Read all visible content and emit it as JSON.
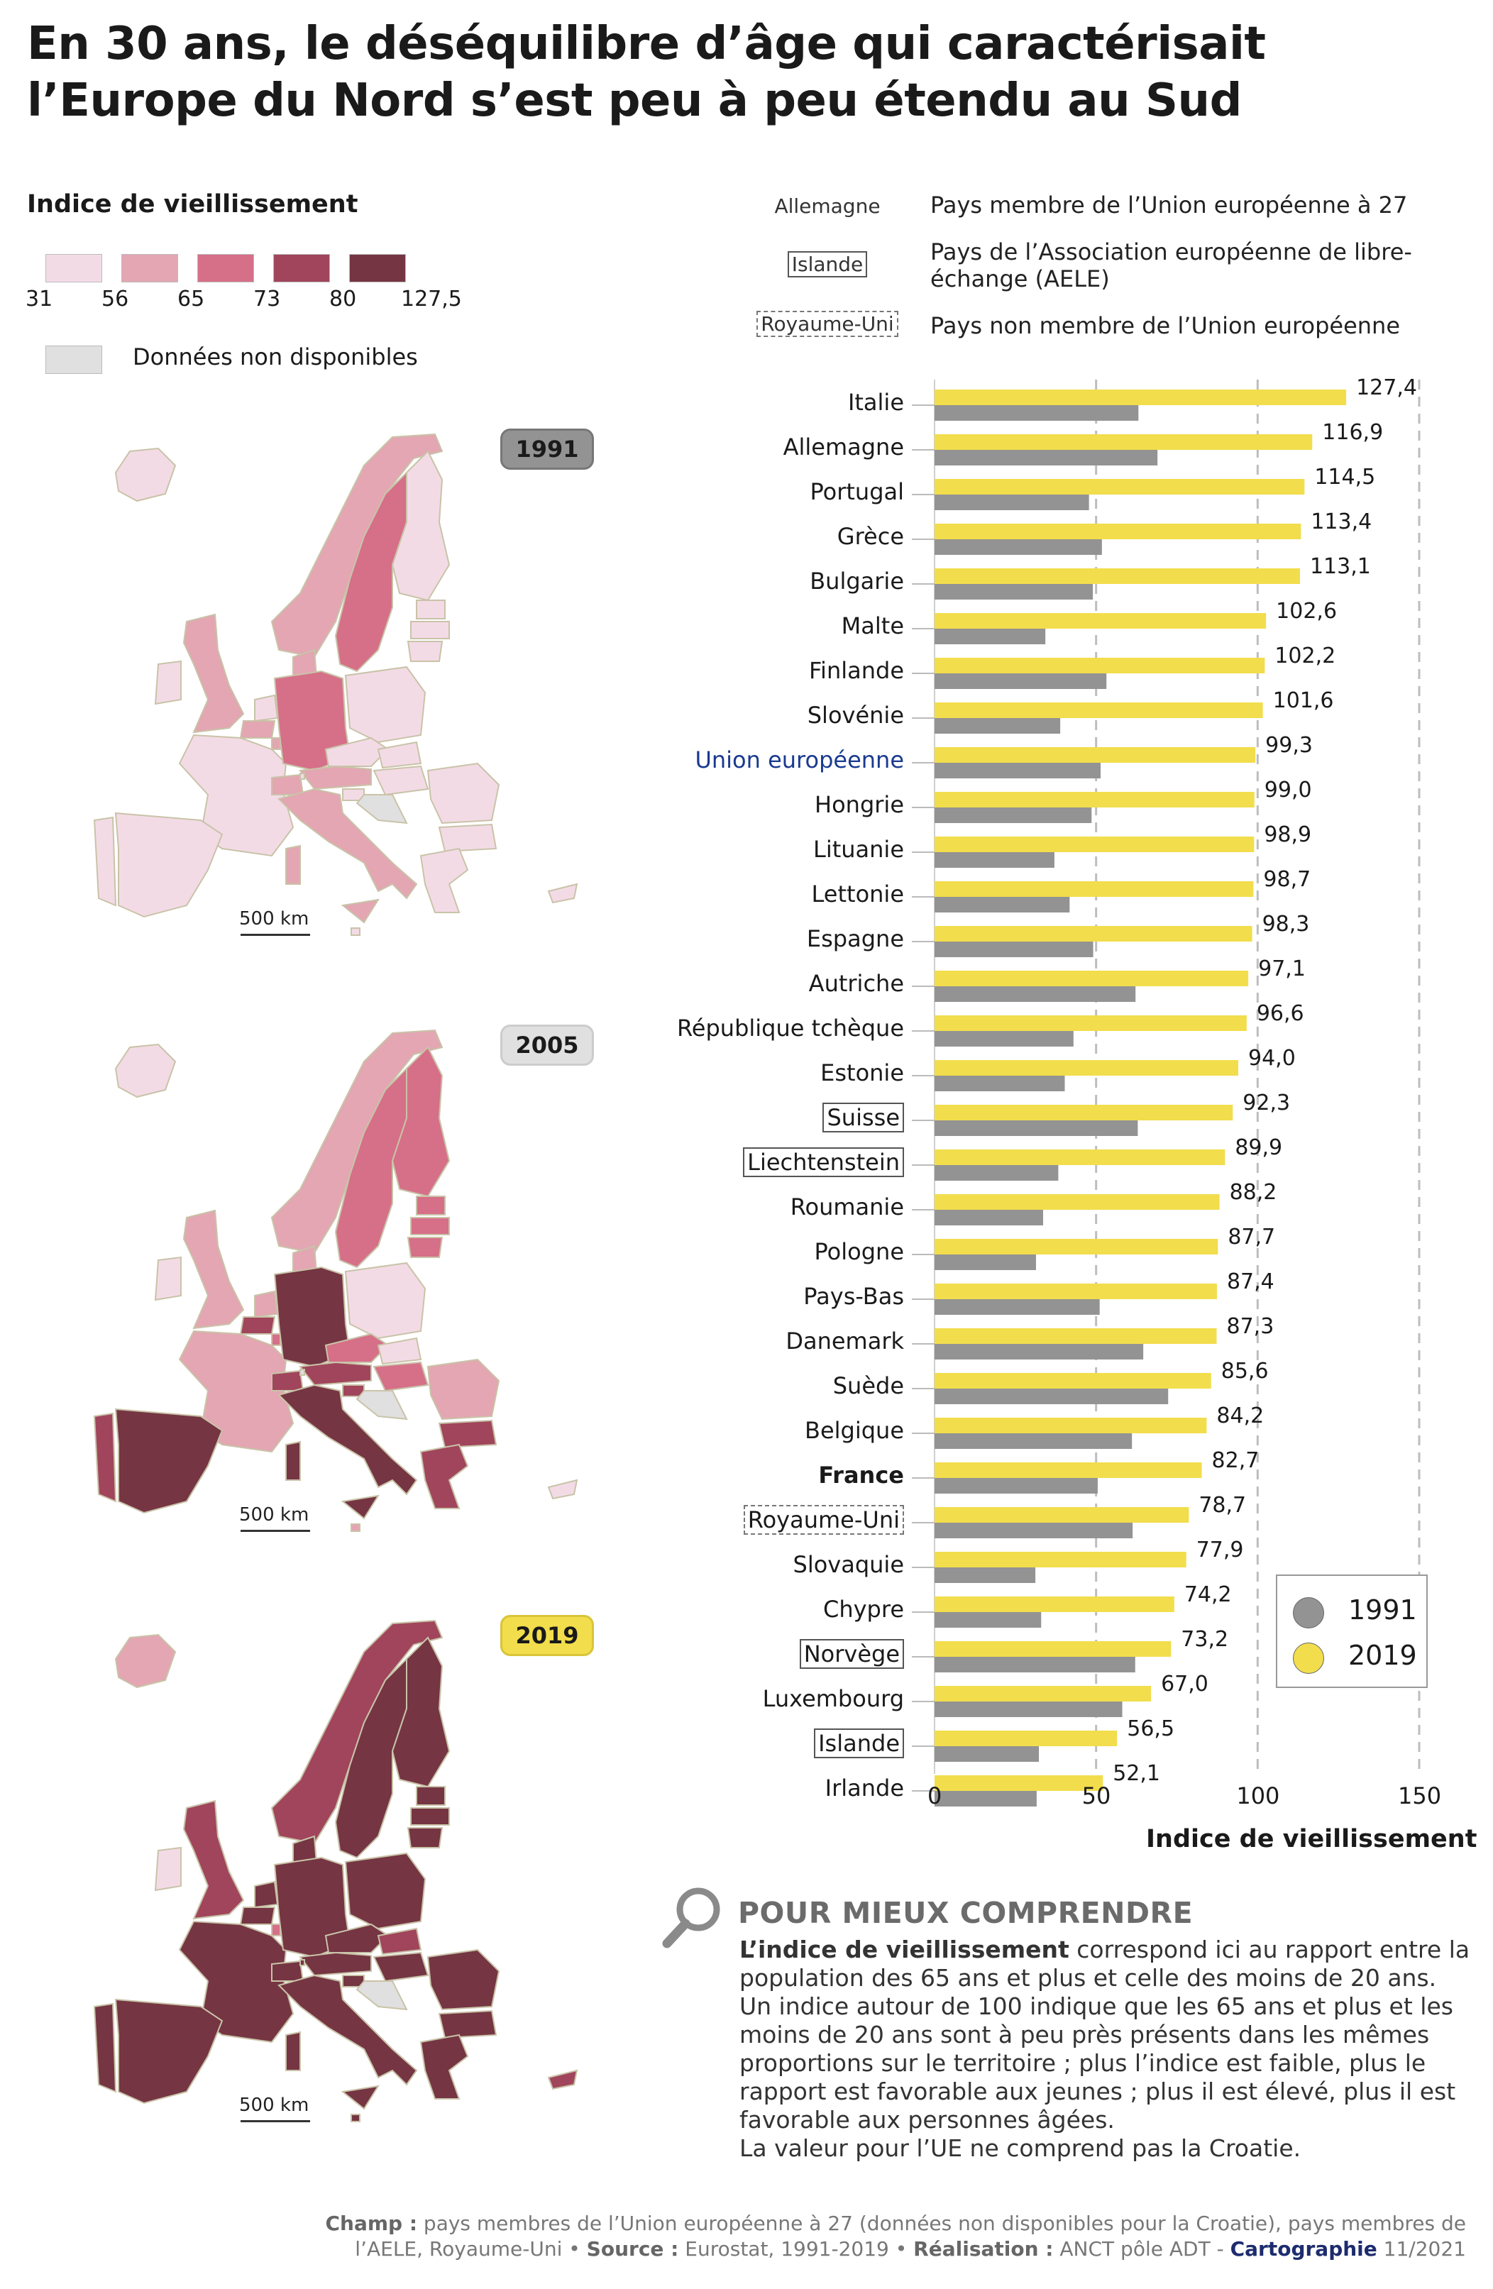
{
  "title": "En 30 ans, le déséquilibre d’âge qui caractérisait l’Europe du Nord s’est peu à peu étendu au Sud",
  "map_legend": {
    "title": "Indice de vieillissement",
    "breaks": [
      "31",
      "56",
      "65",
      "73",
      "80",
      "127,5"
    ],
    "class_colors": [
      "#f3dbe6",
      "#e3a6b2",
      "#d66f88",
      "#a0455c",
      "#753543"
    ],
    "thresholds": [
      56,
      65,
      73,
      80
    ],
    "no_data_label": "Données non disponibles",
    "no_data_color": "#e0e0e0"
  },
  "country_type_legend": [
    {
      "key": "Allemagne",
      "style": "plain",
      "desc": "Pays membre de l’Union européenne à 27"
    },
    {
      "key": "Islande",
      "style": "solid",
      "desc": "Pays de l’Association européenne de libre-échange (AELE)"
    },
    {
      "key": "Royaume-Uni",
      "style": "dashed",
      "desc": "Pays non membre de l’Union européenne"
    }
  ],
  "maps": [
    {
      "year": "1991",
      "badge_color": "#939393",
      "scale_label": "500 km"
    },
    {
      "year": "2005",
      "badge_color": "#e0e0e0",
      "scale_label": "500 km",
      "classes": {
        "Allemagne": 5,
        "Italie": 5,
        "Espagne": 5,
        "Portugal": 4,
        "Grèce": 4,
        "France": 2,
        "Royaume-Uni": 2,
        "Suède": 3,
        "Finlande": 3,
        "Norvège": 2,
        "Irlande": 1,
        "Pologne": 1,
        "Autriche": 4,
        "Suisse": 4,
        "Belgique": 4,
        "Bulgarie": 4,
        "Roumanie": 2,
        "Estonie": 3,
        "Lettonie": 3,
        "Lituanie": 3,
        "Danemark": 2,
        "Pays-Bas": 2,
        "République tchèque": 3,
        "Slovaquie": 1,
        "Hongrie": 3,
        "Slovénie": 4,
        "Islande": 1,
        "Chypre": 1,
        "Malte": 2,
        "Luxembourg": 3
      }
    },
    {
      "year": "2019",
      "badge_color": "#f2dd4c",
      "scale_label": "500 km"
    }
  ],
  "chart_data": {
    "type": "bar",
    "orientation": "horizontal",
    "xlabel": "Indice de vieillissement",
    "xlim": [
      0,
      150
    ],
    "xticks": [
      "0",
      "50",
      "100",
      "150"
    ],
    "grid": true,
    "legend_position": "bottom-right",
    "categories": [
      "Italie",
      "Allemagne",
      "Portugal",
      "Grèce",
      "Bulgarie",
      "Malte",
      "Finlande",
      "Slovénie",
      "Union européenne",
      "Hongrie",
      "Lituanie",
      "Lettonie",
      "Espagne",
      "Autriche",
      "République tchèque",
      "Estonie",
      "Suisse",
      "Liechtenstein",
      "Roumanie",
      "Pologne",
      "Pays-Bas",
      "Danemark",
      "Suède",
      "Belgique",
      "France",
      "Royaume-Uni",
      "Slovaquie",
      "Chypre",
      "Norvège",
      "Luxembourg",
      "Islande",
      "Irlande"
    ],
    "category_style": [
      "",
      "",
      "",
      "",
      "",
      "",
      "",
      "",
      "eu",
      "",
      "",
      "",
      "",
      "",
      "",
      "",
      "efta",
      "efta",
      "",
      "",
      "",
      "",
      "",
      "",
      "bold",
      "nonmember",
      "",
      "",
      "efta",
      "",
      "efta",
      ""
    ],
    "series": [
      {
        "name": "2019",
        "color": "#f2dd4c",
        "values": [
          127.4,
          116.9,
          114.5,
          113.4,
          113.1,
          102.6,
          102.2,
          101.6,
          99.3,
          99.0,
          98.9,
          98.7,
          98.3,
          97.1,
          96.6,
          94.0,
          92.3,
          89.9,
          88.2,
          87.7,
          87.4,
          87.3,
          85.6,
          84.2,
          82.7,
          78.7,
          77.9,
          74.2,
          73.2,
          67.0,
          56.5,
          52.1
        ],
        "labels": [
          "127,4",
          "116,9",
          "114,5",
          "113,4",
          "113,1",
          "102,6",
          "102,2",
          "101,6",
          "99,3",
          "99,0",
          "98,9",
          "98,7",
          "98,3",
          "97,1",
          "96,6",
          "94,0",
          "92,3",
          "89,9",
          "88,2",
          "87,7",
          "87,4",
          "87,3",
          "85,6",
          "84,2",
          "82,7",
          "78,7",
          "77,9",
          "74,2",
          "73,2",
          "67,0",
          "56,5",
          "52,1"
        ]
      },
      {
        "name": "1991",
        "color": "#939393",
        "values": [
          63.1,
          69.0,
          47.8,
          51.8,
          49.0,
          34.3,
          53.2,
          38.9,
          51.4,
          48.6,
          37.1,
          41.8,
          49.1,
          62.2,
          43.0,
          40.3,
          62.9,
          38.3,
          33.6,
          31.4,
          51.1,
          64.6,
          72.3,
          61.1,
          50.5,
          61.3,
          31.2,
          33.0,
          62.1,
          58.1,
          32.3,
          31.6
        ]
      }
    ]
  },
  "explainer": {
    "title": "POUR MIEUX COMPRENDRE",
    "lead": "L’indice de vieillissement",
    "body": " correspond ici au rapport entre la population des 65 ans et plus et celle des moins de 20 ans. Un indice autour de 100 indique que les 65 ans et plus et les moins de 20 ans sont à peu près présents dans les mêmes proportions sur le territoire ; plus l’indice est faible, plus le rapport est favorable aux jeunes ; plus il est élevé, plus il est favorable aux personnes âgées.",
    "note": "La valeur pour l’UE ne comprend pas la Croatie."
  },
  "footer": {
    "champ_label": "Champ :",
    "champ": " pays membres de l’Union européenne à 27 (données non disponibles pour la Croatie), pays membres de l’AELE, Royaume-Uni • ",
    "source_label": "Source :",
    "source": " Eurostat, 1991-2019 • ",
    "real_label": "Réalisation :",
    "real": " ANCT pôle ADT - ",
    "carto": "Cartographie",
    "date": " 11/2021"
  }
}
